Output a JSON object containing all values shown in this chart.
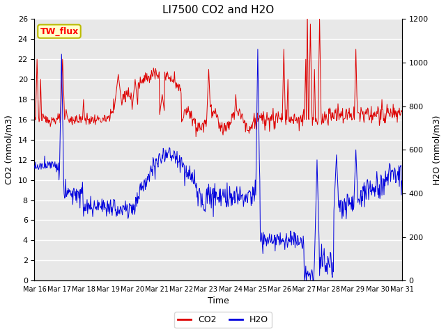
{
  "title": "LI7500 CO2 and H2O",
  "xlabel": "Time",
  "ylabel_left": "CO2 (mmol/m3)",
  "ylabel_right": "H2O (mmol/m3)",
  "ylim_left": [
    0,
    26
  ],
  "ylim_right": [
    0,
    1200
  ],
  "yticks_left": [
    0,
    2,
    4,
    6,
    8,
    10,
    12,
    14,
    16,
    18,
    20,
    22,
    24,
    26
  ],
  "yticks_right": [
    0,
    200,
    400,
    600,
    800,
    1000,
    1200
  ],
  "xtick_labels": [
    "Mar 16",
    "Mar 17",
    "Mar 18",
    "Mar 19",
    "Mar 20",
    "Mar 21",
    "Mar 22",
    "Mar 23",
    "Mar 24",
    "Mar 25",
    "Mar 26",
    "Mar 27",
    "Mar 28",
    "Mar 29",
    "Mar 30",
    "Mar 31"
  ],
  "annotation_text": "TW_flux",
  "annotation_bg": "#ffffcc",
  "annotation_border": "#bbbb00",
  "co2_color": "#dd0000",
  "h2o_color": "#0000dd",
  "background_color": "#e8e8e8",
  "grid_color": "#ffffff",
  "title_fontsize": 11,
  "axis_label_fontsize": 9,
  "tick_fontsize": 8,
  "legend_fontsize": 9,
  "n_days": 15,
  "n_per_day": 48
}
